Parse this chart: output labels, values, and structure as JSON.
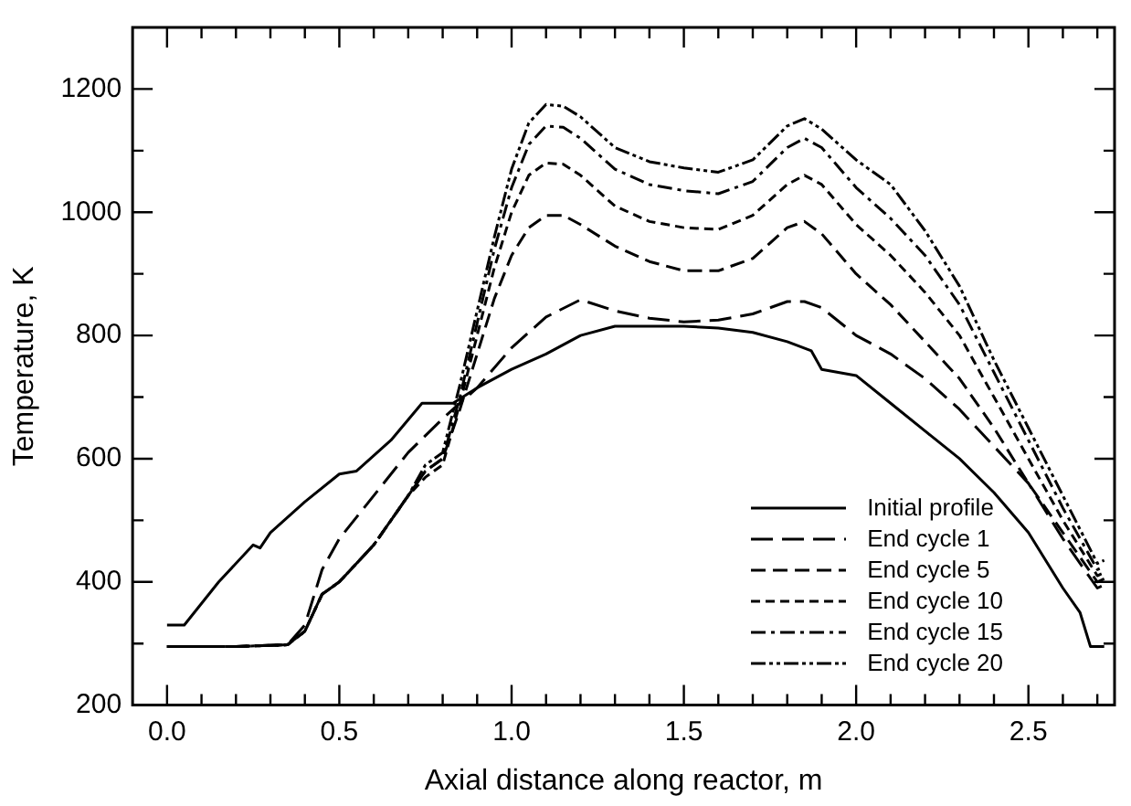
{
  "chart_data": {
    "type": "line",
    "xlabel": "Axial distance along reactor, m",
    "ylabel": "Temperature, K",
    "xlim": [
      -0.1,
      2.75
    ],
    "ylim": [
      200,
      1300
    ],
    "xticks": [
      {
        "value": 0,
        "label": "0.0"
      },
      {
        "value": 0.1,
        "label": null
      },
      {
        "value": 0.2,
        "label": null
      },
      {
        "value": 0.3,
        "label": null
      },
      {
        "value": 0.4,
        "label": null
      },
      {
        "value": 0.5,
        "label": "0.5"
      },
      {
        "value": 0.6,
        "label": null
      },
      {
        "value": 0.7,
        "label": null
      },
      {
        "value": 0.8,
        "label": null
      },
      {
        "value": 0.9,
        "label": null
      },
      {
        "value": 1,
        "label": "1.0"
      },
      {
        "value": 1.1,
        "label": null
      },
      {
        "value": 1.2,
        "label": null
      },
      {
        "value": 1.3,
        "label": null
      },
      {
        "value": 1.4,
        "label": null
      },
      {
        "value": 1.5,
        "label": "1.5"
      },
      {
        "value": 1.6,
        "label": null
      },
      {
        "value": 1.7,
        "label": null
      },
      {
        "value": 1.8,
        "label": null
      },
      {
        "value": 1.9,
        "label": null
      },
      {
        "value": 2,
        "label": "2.0"
      },
      {
        "value": 2.1,
        "label": null
      },
      {
        "value": 2.2,
        "label": null
      },
      {
        "value": 2.3,
        "label": null
      },
      {
        "value": 2.4,
        "label": null
      },
      {
        "value": 2.5,
        "label": "2.5"
      },
      {
        "value": 2.6,
        "label": null
      },
      {
        "value": 2.7,
        "label": null
      }
    ],
    "yticks": [
      200,
      {
        "value": 300,
        "label": null
      },
      400,
      {
        "value": 500,
        "label": null
      },
      600,
      {
        "value": 700,
        "label": null
      },
      800,
      {
        "value": 900,
        "label": null
      },
      1000,
      {
        "value": 1100,
        "label": null
      },
      1200
    ],
    "grid": false,
    "legend": "bottom right",
    "marker": "none",
    "series": [
      {
        "name": "Initial profile",
        "color": "#000000",
        "line_style": "solid",
        "x": [
          0,
          0.05,
          0.15,
          0.25,
          0.27,
          0.3,
          0.4,
          0.5,
          0.55,
          0.65,
          0.74,
          0.83,
          0.9,
          1.0,
          1.1,
          1.2,
          1.3,
          1.4,
          1.5,
          1.6,
          1.7,
          1.8,
          1.87,
          1.9,
          2.0,
          2.1,
          2.2,
          2.3,
          2.4,
          2.5,
          2.6,
          2.65,
          2.68,
          2.72
        ],
        "values": [
          330,
          330,
          400,
          460,
          455,
          480,
          530,
          575,
          580,
          630,
          690,
          690,
          715,
          745,
          770,
          800,
          815,
          815,
          815,
          812,
          805,
          790,
          775,
          745,
          735,
          690,
          645,
          600,
          545,
          480,
          390,
          350,
          295,
          295
        ]
      },
      {
        "name": "End cycle 1",
        "color": "#000000",
        "line_style": "dashed",
        "x": [
          0,
          0.2,
          0.35,
          0.4,
          0.45,
          0.5,
          0.6,
          0.7,
          0.8,
          0.9,
          1.0,
          1.1,
          1.2,
          1.3,
          1.4,
          1.5,
          1.6,
          1.7,
          1.8,
          1.85,
          1.9,
          2.0,
          2.1,
          2.2,
          2.3,
          2.4,
          2.5,
          2.6,
          2.7,
          2.72
        ],
        "values": [
          295,
          295,
          298,
          330,
          420,
          470,
          540,
          610,
          665,
          715,
          780,
          830,
          858,
          840,
          828,
          822,
          825,
          835,
          855,
          855,
          845,
          800,
          770,
          730,
          680,
          620,
          560,
          470,
          390,
          395
        ]
      },
      {
        "name": "End cycle 5",
        "color": "#000000",
        "line_style": "dashed",
        "x": [
          0,
          0.2,
          0.35,
          0.4,
          0.45,
          0.5,
          0.6,
          0.7,
          0.75,
          0.8,
          0.85,
          0.9,
          0.95,
          1.0,
          1.05,
          1.1,
          1.15,
          1.2,
          1.3,
          1.4,
          1.5,
          1.6,
          1.7,
          1.8,
          1.85,
          1.9,
          2.0,
          2.1,
          2.2,
          2.3,
          2.4,
          2.5,
          2.6,
          2.7,
          2.72
        ],
        "values": [
          295,
          295,
          298,
          320,
          380,
          400,
          460,
          540,
          580,
          600,
          680,
          770,
          860,
          930,
          975,
          995,
          995,
          980,
          945,
          920,
          905,
          905,
          925,
          975,
          985,
          965,
          900,
          850,
          790,
          730,
          650,
          560,
          480,
          400,
          405
        ]
      },
      {
        "name": "End cycle 10",
        "color": "#000000",
        "line_style": "dashed",
        "x": [
          0,
          0.2,
          0.35,
          0.4,
          0.45,
          0.5,
          0.6,
          0.7,
          0.75,
          0.8,
          0.85,
          0.9,
          0.95,
          1.0,
          1.05,
          1.1,
          1.15,
          1.2,
          1.3,
          1.4,
          1.5,
          1.6,
          1.7,
          1.8,
          1.85,
          1.9,
          2.0,
          2.1,
          2.2,
          2.3,
          2.4,
          2.5,
          2.6,
          2.7,
          2.72
        ],
        "values": [
          295,
          295,
          298,
          320,
          380,
          400,
          460,
          540,
          570,
          590,
          690,
          800,
          910,
          1000,
          1060,
          1080,
          1078,
          1060,
          1010,
          985,
          975,
          972,
          995,
          1045,
          1060,
          1045,
          980,
          930,
          870,
          800,
          700,
          600,
          500,
          410,
          415
        ]
      },
      {
        "name": "End cycle 15",
        "color": "#000000",
        "line_style": "dashed",
        "x": [
          0,
          0.2,
          0.35,
          0.4,
          0.45,
          0.5,
          0.6,
          0.7,
          0.75,
          0.8,
          0.85,
          0.9,
          0.95,
          1.0,
          1.05,
          1.1,
          1.15,
          1.2,
          1.3,
          1.4,
          1.5,
          1.6,
          1.7,
          1.8,
          1.85,
          1.9,
          2.0,
          2.1,
          2.2,
          2.3,
          2.4,
          2.5,
          2.6,
          2.7,
          2.72
        ],
        "values": [
          295,
          295,
          298,
          320,
          380,
          400,
          460,
          540,
          580,
          600,
          700,
          820,
          940,
          1040,
          1110,
          1140,
          1138,
          1120,
          1070,
          1045,
          1035,
          1030,
          1050,
          1105,
          1120,
          1105,
          1040,
          990,
          930,
          850,
          740,
          630,
          520,
          420,
          425
        ]
      },
      {
        "name": "End cycle 20",
        "color": "#000000",
        "line_style": "dashed",
        "x": [
          0,
          0.2,
          0.35,
          0.4,
          0.45,
          0.5,
          0.6,
          0.7,
          0.75,
          0.8,
          0.85,
          0.9,
          0.95,
          1.0,
          1.05,
          1.1,
          1.15,
          1.2,
          1.3,
          1.4,
          1.5,
          1.6,
          1.7,
          1.8,
          1.85,
          1.9,
          2.0,
          2.1,
          2.2,
          2.3,
          2.4,
          2.5,
          2.6,
          2.7,
          2.72
        ],
        "values": [
          295,
          295,
          298,
          320,
          380,
          400,
          460,
          540,
          590,
          610,
          720,
          840,
          960,
          1070,
          1145,
          1175,
          1172,
          1155,
          1105,
          1082,
          1072,
          1065,
          1085,
          1140,
          1152,
          1135,
          1085,
          1045,
          970,
          880,
          760,
          650,
          540,
          430,
          435
        ]
      }
    ]
  }
}
